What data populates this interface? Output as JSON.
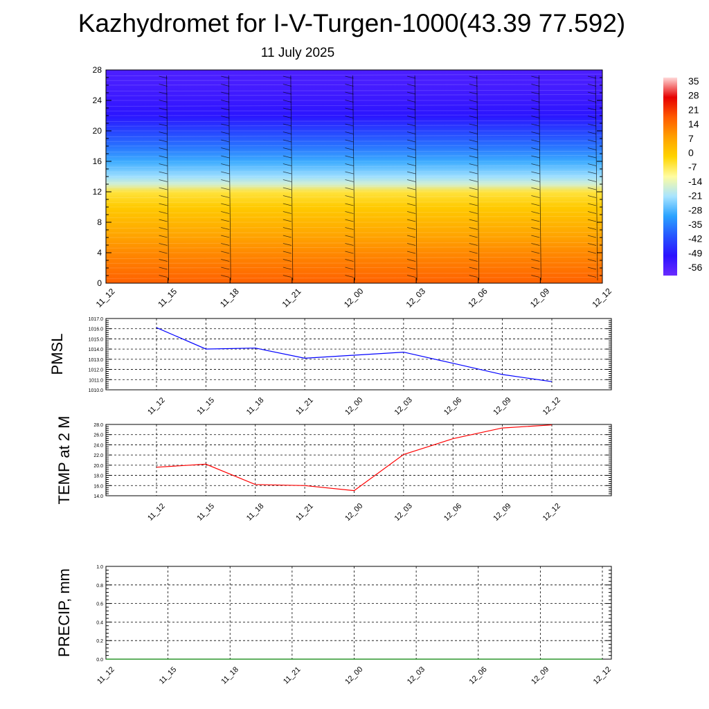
{
  "title": "Kazhydromet for I-V-Turgen-1000(43.39 77.592)",
  "subtitle": "11 July 2025",
  "chart_data": [
    {
      "type": "heatmap",
      "title": "",
      "xlabel": "",
      "ylabel": "",
      "x_ticks": [
        "11_12",
        "11_15",
        "11_18",
        "11_21",
        "12_00",
        "12_03",
        "12_06",
        "12_09",
        "12_12"
      ],
      "y_ticks": [
        0,
        4,
        8,
        12,
        16,
        20,
        24,
        28
      ],
      "ylim": [
        0,
        28
      ],
      "colorbar_labels": [
        35,
        28,
        21,
        14,
        7,
        0,
        -7,
        -14,
        -21,
        -28,
        -35,
        -42,
        -49,
        -56
      ],
      "colorbar_range": [
        -63,
        42
      ],
      "temperature_profile": [
        {
          "level": 0,
          "value": 20
        },
        {
          "level": 2,
          "value": 17
        },
        {
          "level": 4,
          "value": 14
        },
        {
          "level": 6,
          "value": 10
        },
        {
          "level": 8,
          "value": 6
        },
        {
          "level": 10,
          "value": 2
        },
        {
          "level": 12,
          "value": -4
        },
        {
          "level": 13,
          "value": -16
        },
        {
          "level": 14,
          "value": -22
        },
        {
          "level": 16,
          "value": -30
        },
        {
          "level": 18,
          "value": -38
        },
        {
          "level": 20,
          "value": -45
        },
        {
          "level": 22,
          "value": -52
        },
        {
          "level": 24,
          "value": -55
        },
        {
          "level": 26,
          "value": -57
        },
        {
          "level": 28,
          "value": -58
        }
      ],
      "colors": {
        "ramp": [
          "#ffd9d9",
          "#e60000",
          "#ff5a00",
          "#ffa000",
          "#ffd400",
          "#fffca0",
          "#a8e4ff",
          "#2aa2ff",
          "#2655ff",
          "#2b12ff",
          "#6a2bff"
        ]
      }
    },
    {
      "type": "line",
      "title": "",
      "xlabel": "",
      "ylabel": "PMSL",
      "categories": [
        "11_12",
        "11_15",
        "11_18",
        "11_21",
        "12_00",
        "12_03",
        "12_06",
        "12_09",
        "12_12"
      ],
      "series": [
        {
          "values": [
            1016.1,
            1014.0,
            1014.1,
            1013.1,
            1013.4,
            1013.7,
            1012.6,
            1011.5,
            1010.8
          ],
          "color": "#0000ff"
        }
      ],
      "ylim": [
        1010.0,
        1017.0
      ],
      "y_ticks": [
        "1010.0",
        "1011.0",
        "1012.0",
        "1013.0",
        "1014.0",
        "1015.0",
        "1016.0",
        "1017.0"
      ],
      "grid": true
    },
    {
      "type": "line",
      "title": "",
      "xlabel": "",
      "ylabel": "TEMP at 2 M",
      "categories": [
        "11_12",
        "11_15",
        "11_18",
        "11_21",
        "12_00",
        "12_03",
        "12_06",
        "12_09",
        "12_12"
      ],
      "series": [
        {
          "values": [
            19.6,
            20.2,
            16.2,
            16.0,
            15.0,
            22.1,
            25.2,
            27.3,
            27.9
          ],
          "color": "#ff0000"
        }
      ],
      "ylim": [
        14.0,
        28.0
      ],
      "y_ticks": [
        "14.0",
        "16.0",
        "18.0",
        "20.0",
        "22.0",
        "24.0",
        "26.0",
        "28.0"
      ],
      "grid": true
    },
    {
      "type": "line",
      "title": "",
      "xlabel": "",
      "ylabel": "PRECIP, mm",
      "categories": [
        "11_12",
        "11_15",
        "11_18",
        "11_21",
        "12_00",
        "12_03",
        "12_06",
        "12_09",
        "12_12"
      ],
      "series": [
        {
          "values": [
            0,
            0,
            0,
            0,
            0,
            0,
            0,
            0,
            0
          ],
          "color": "#008000"
        }
      ],
      "ylim": [
        0.0,
        1.0
      ],
      "y_ticks": [
        "0.0",
        "0.2",
        "0.4",
        "0.6",
        "0.8",
        "1.0"
      ],
      "grid": true
    }
  ]
}
